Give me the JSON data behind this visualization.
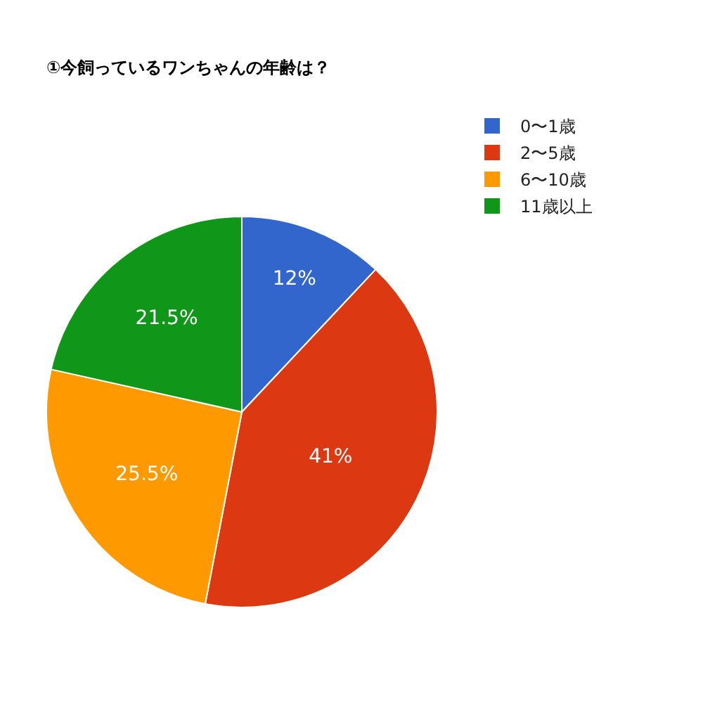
{
  "chart_data": {
    "type": "pie",
    "title": "①今飼っているワンちゃんの年齢は？",
    "categories": [
      "0〜1歳",
      "2〜5歳",
      "6〜10歳",
      "11歳以上"
    ],
    "values": [
      12,
      41,
      25.5,
      21.5
    ],
    "colors": [
      "#3366cc",
      "#dc3912",
      "#ff9900",
      "#109618"
    ],
    "value_labels": [
      "12%",
      "41%",
      "25.5%",
      "21.5%"
    ],
    "legend": "top right"
  }
}
